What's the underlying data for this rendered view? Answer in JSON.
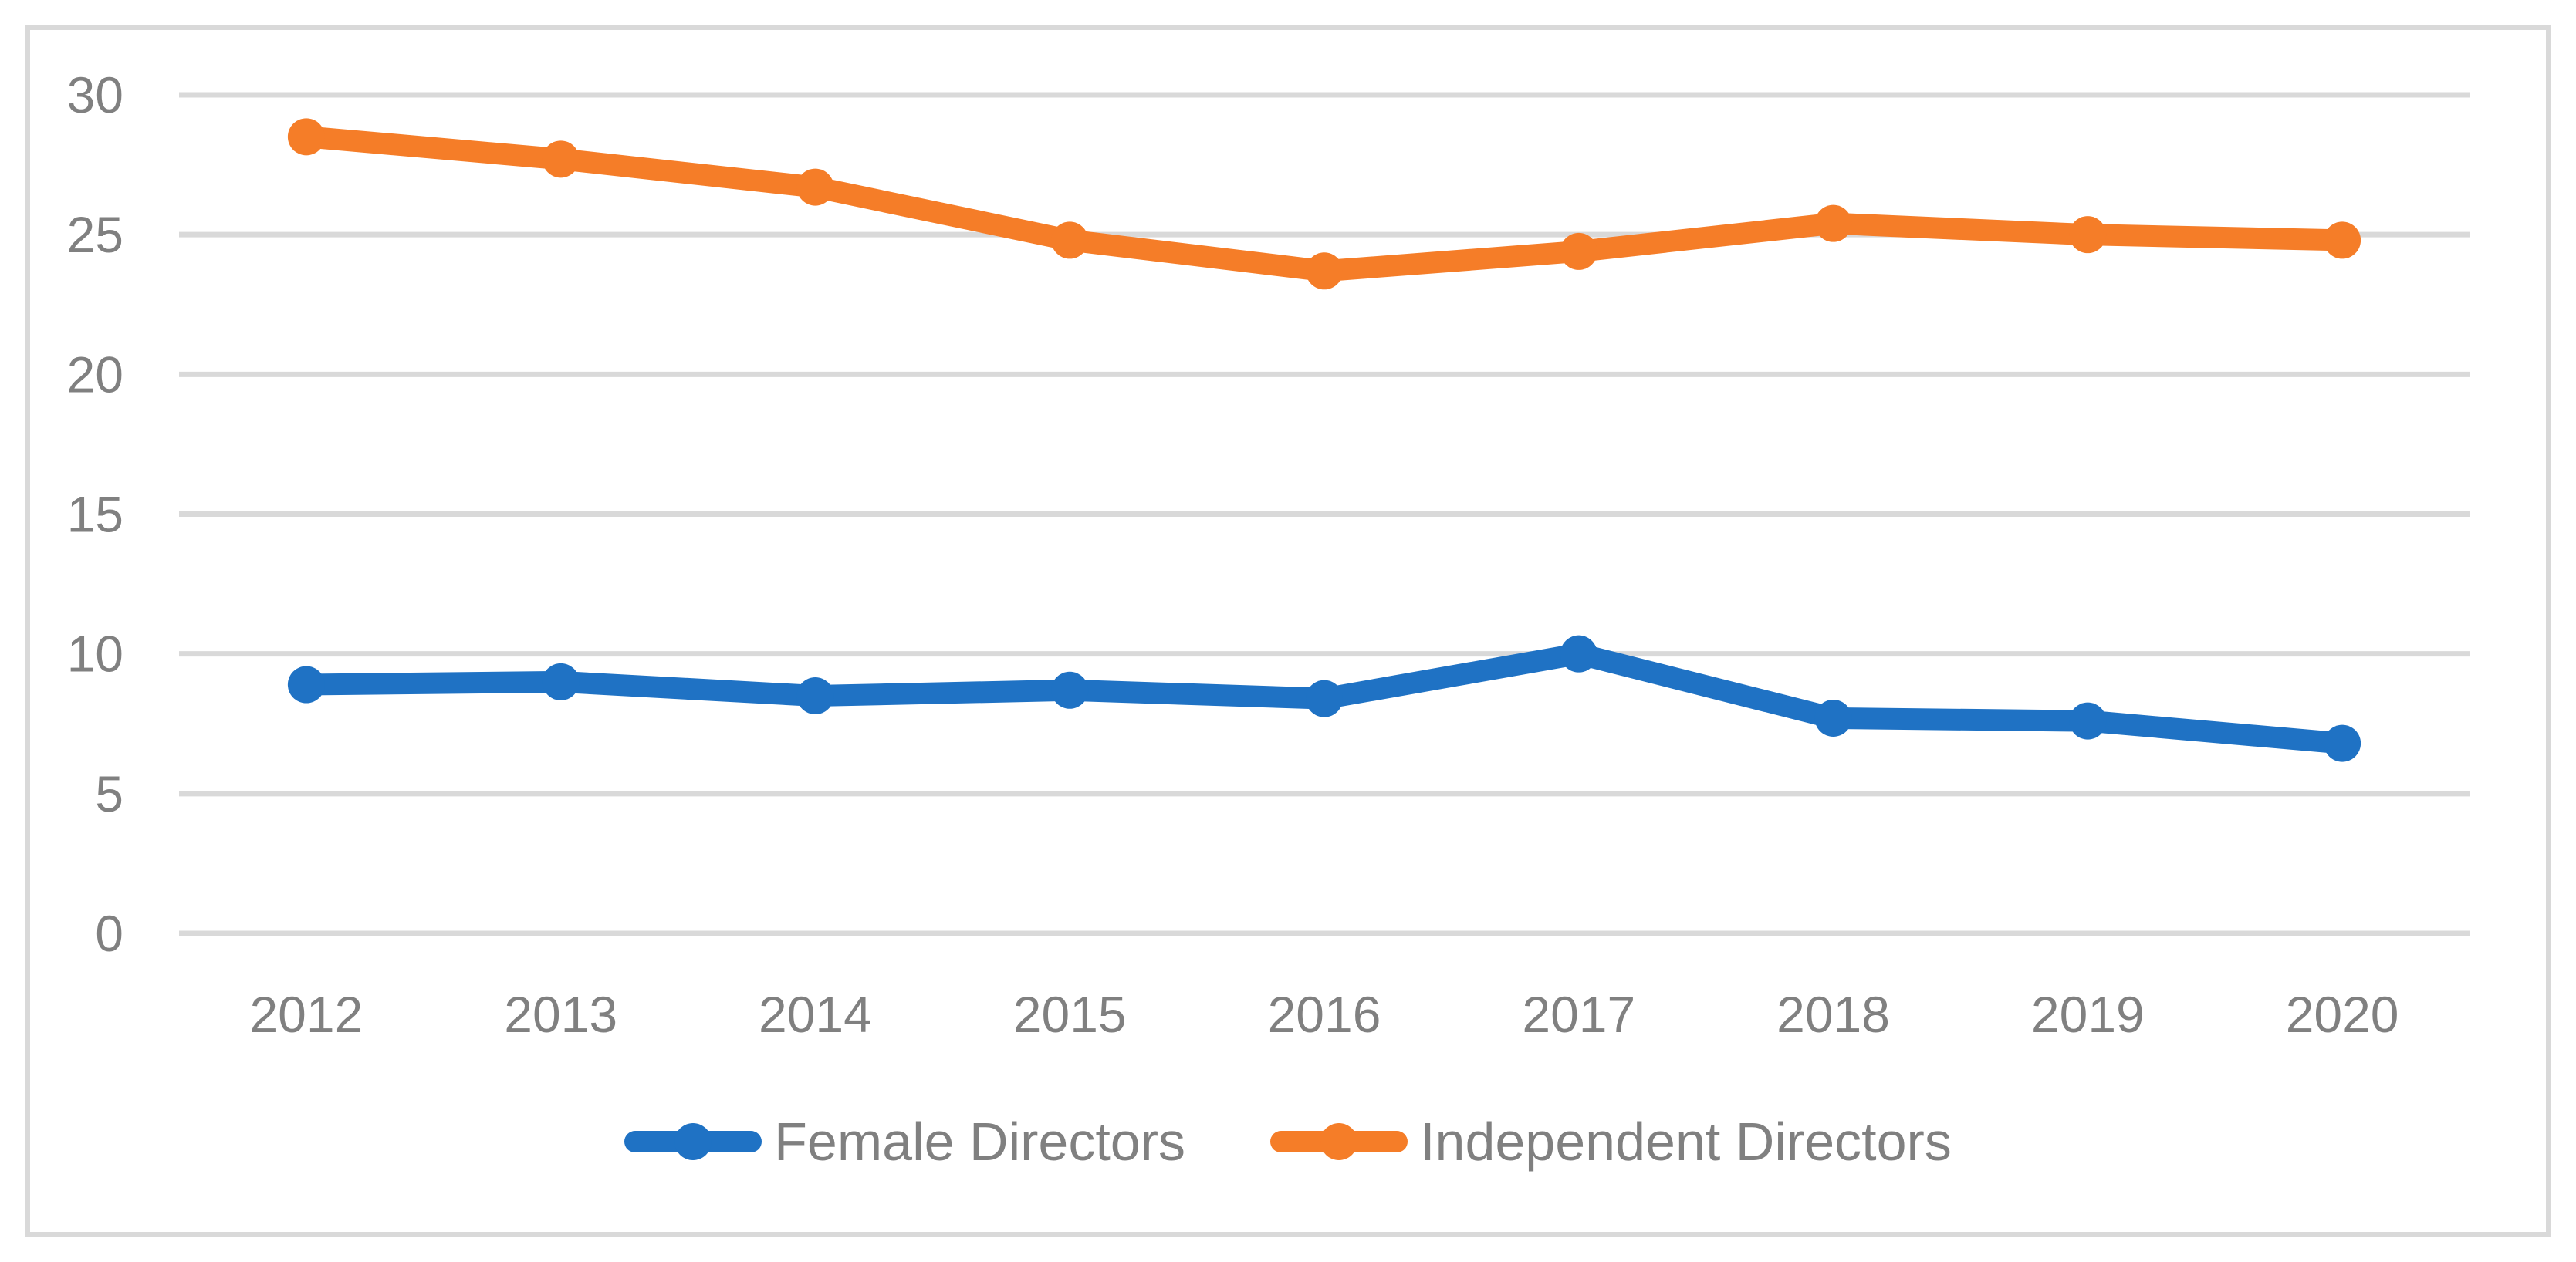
{
  "chart_data": {
    "type": "line",
    "title": "",
    "xlabel": "",
    "ylabel": "",
    "categories": [
      "2012",
      "2013",
      "2014",
      "2015",
      "2016",
      "2017",
      "2018",
      "2019",
      "2020"
    ],
    "series": [
      {
        "name": "Female Directors",
        "color": "#1F72C4",
        "marker": "circle",
        "values": [
          8.9,
          9.0,
          8.5,
          8.7,
          8.4,
          10.0,
          7.7,
          7.6,
          6.8
        ]
      },
      {
        "name": "Independent Directors",
        "color": "#F57D28",
        "marker": "circle",
        "values": [
          28.5,
          27.7,
          26.7,
          24.8,
          23.7,
          24.4,
          25.4,
          25.0,
          24.8
        ]
      }
    ],
    "ylim": [
      0,
      30
    ],
    "yticks": [
      0,
      5,
      10,
      15,
      20,
      25,
      30
    ],
    "grid": "horizontal",
    "legend_position": "bottom-center"
  },
  "colors": {
    "background": "#FFFFFF",
    "frame_border": "#D9D9D9",
    "gridline": "#D9D9D9",
    "axis_labels": "#808080",
    "legend_text": "#808080"
  }
}
